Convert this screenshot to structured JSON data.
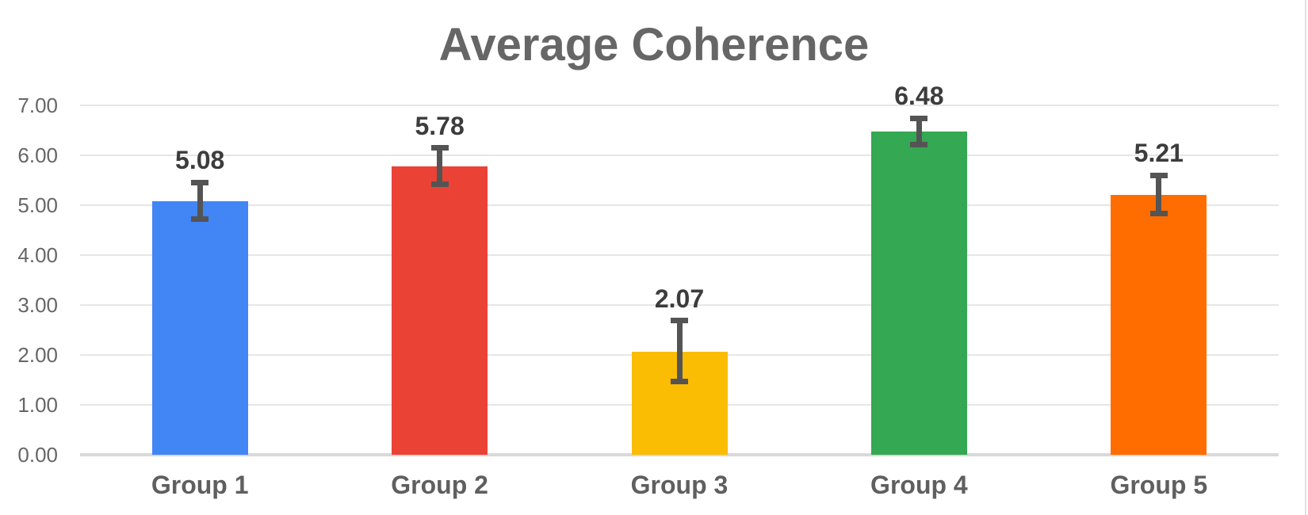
{
  "chart_data": {
    "type": "bar",
    "title": "Average Coherence",
    "xlabel": "",
    "ylabel": "",
    "categories": [
      "Group 1",
      "Group 2",
      "Group 3",
      "Group 4",
      "Group 5"
    ],
    "values": [
      5.08,
      5.78,
      2.07,
      6.48,
      5.21
    ],
    "value_labels": [
      "5.08",
      "5.78",
      "2.07",
      "6.48",
      "5.21"
    ],
    "error_low": [
      4.72,
      5.42,
      1.47,
      6.22,
      4.83
    ],
    "error_high": [
      5.46,
      6.15,
      2.69,
      6.74,
      5.6
    ],
    "bar_colors": [
      "#4285F4",
      "#EA4335",
      "#FBBC04",
      "#34A853",
      "#FF6D01"
    ],
    "ylim": [
      0,
      7
    ],
    "y_ticks": [
      "0.00",
      "1.00",
      "2.00",
      "3.00",
      "4.00",
      "5.00",
      "6.00",
      "7.00"
    ],
    "grid": true,
    "legend": "none",
    "colors": {
      "background": "#ffffff",
      "title_text": "#666666",
      "axis_text": "#666666",
      "x_label_text": "#5f5f5f",
      "value_label_text": "#3c3c3c",
      "gridline": "#e6e6e6",
      "baseline": "#d9d9d9",
      "error_bar": "#545454",
      "right_edge_line": "#e2e2e2"
    }
  }
}
